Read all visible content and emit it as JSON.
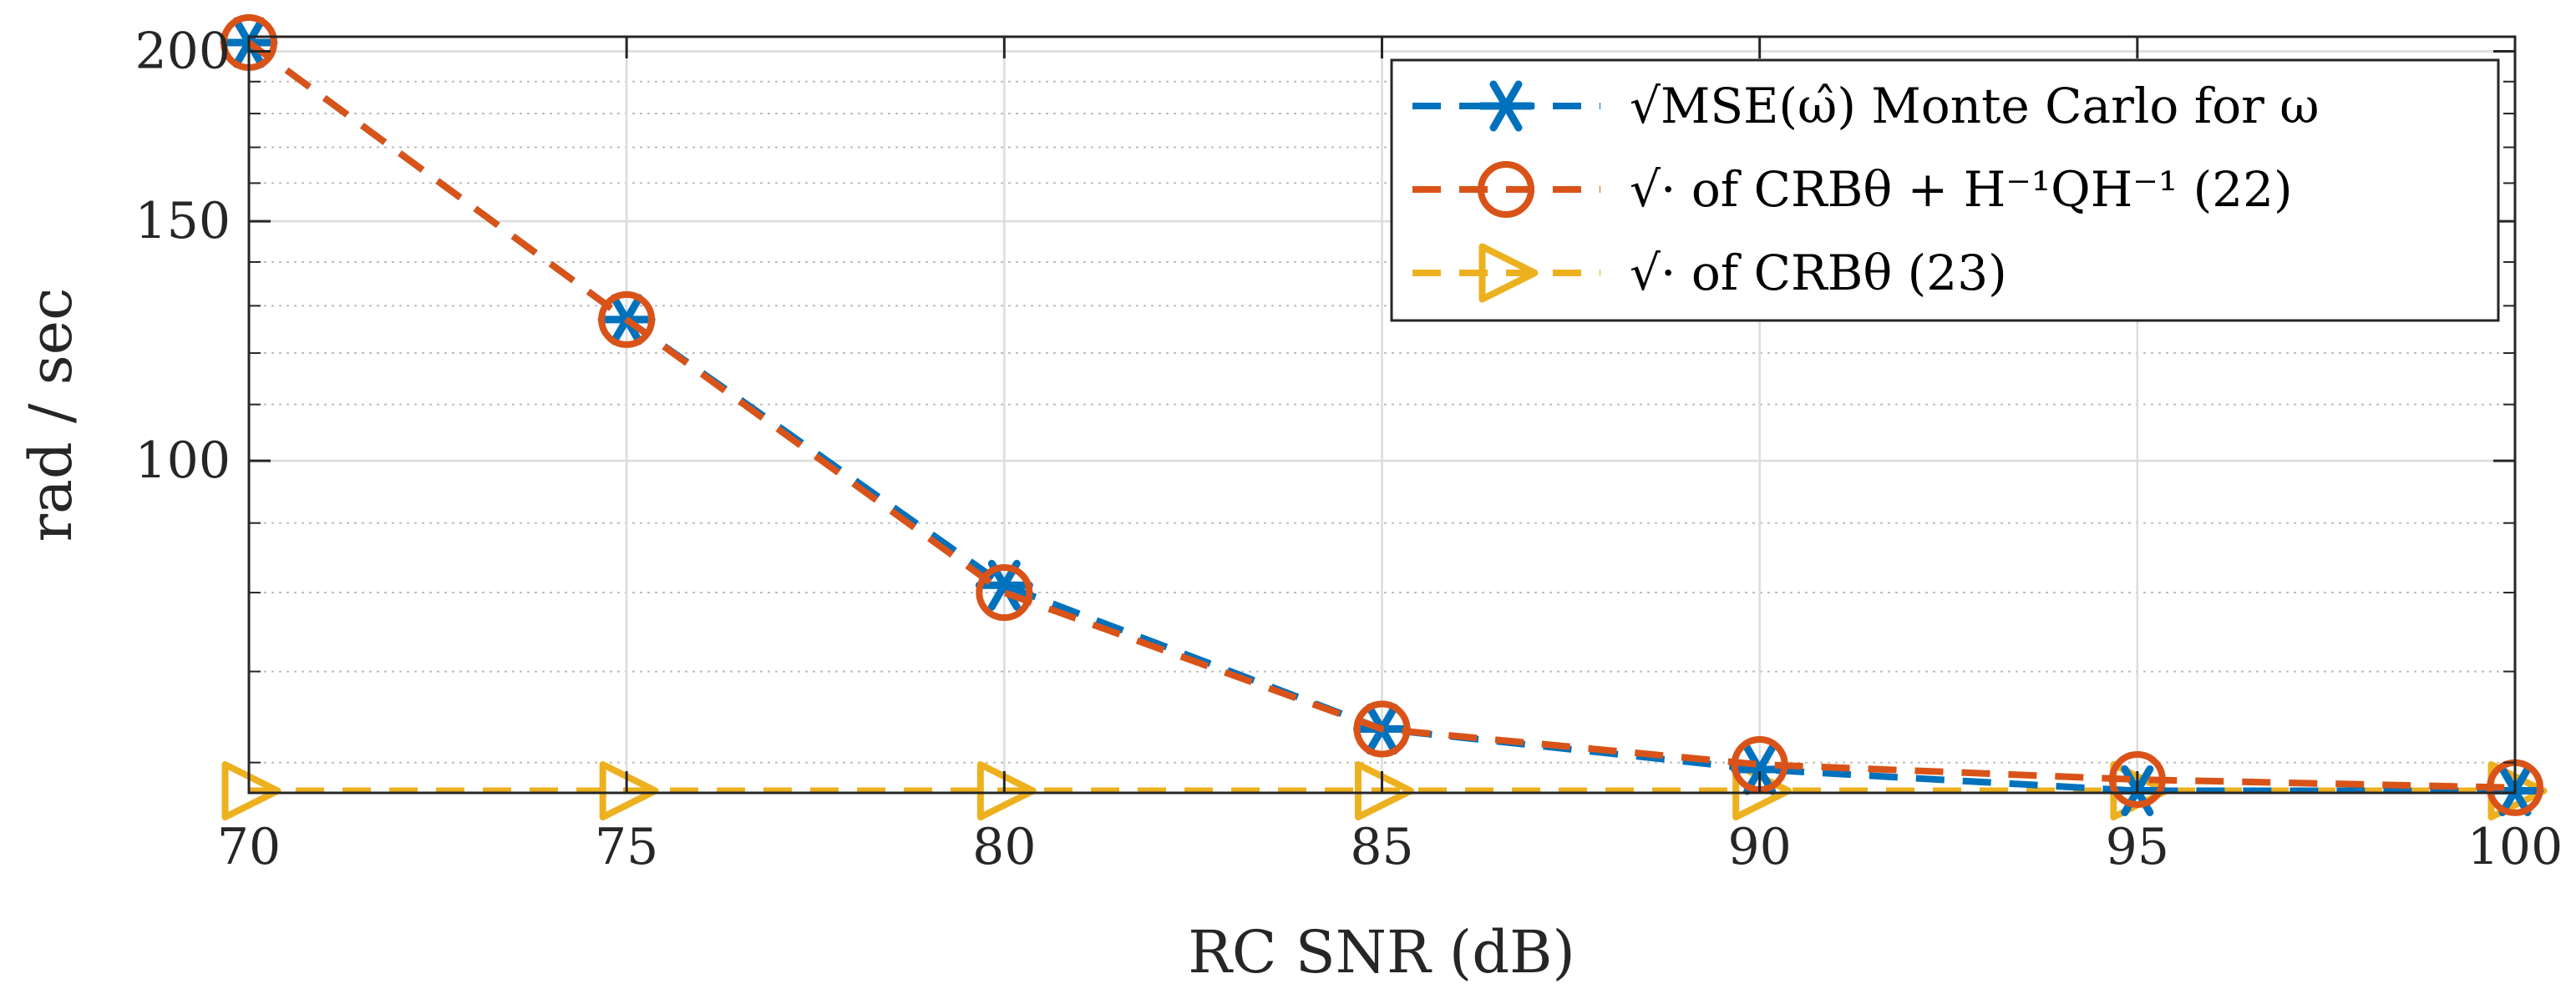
{
  "chart_data": {
    "type": "line",
    "title": "",
    "xlabel": "RC SNR (dB)",
    "ylabel": "rad / sec",
    "xlim": [
      70,
      100
    ],
    "ylim": [
      57,
      205
    ],
    "yscale": "log",
    "grid": true,
    "legend_position": "top-right",
    "x": [
      70,
      75,
      80,
      85,
      90,
      95,
      100
    ],
    "xticks": [
      70,
      75,
      80,
      85,
      90,
      95,
      100
    ],
    "xtick_labels": [
      "70",
      "75",
      "80",
      "85",
      "90",
      "95",
      "100"
    ],
    "yticks": [
      100,
      150,
      200
    ],
    "ytick_labels": [
      "100",
      "150",
      "200"
    ],
    "yminor": [
      60,
      70,
      80,
      90,
      110,
      120,
      130,
      140,
      160,
      170,
      180,
      190
    ],
    "series": [
      {
        "name": "√MSE(ω̂) Monte Carlo for ω",
        "values": [
          203,
          127,
          81,
          63.5,
          59.3,
          57.2,
          57.2
        ],
        "color": "#0072BD",
        "marker": "asterisk"
      },
      {
        "name": "√· of CRBθ + H⁻¹QH⁻¹ (22)",
        "values": [
          203,
          127,
          80,
          63.5,
          59.8,
          58.3,
          57.5
        ],
        "color": "#D95319",
        "marker": "circle"
      },
      {
        "name": "√· of CRBθ (23)",
        "values": [
          57.2,
          57.2,
          57.2,
          57.2,
          57.2,
          57.2,
          57.2
        ],
        "color": "#EDB120",
        "marker": "triangle-right"
      }
    ]
  }
}
